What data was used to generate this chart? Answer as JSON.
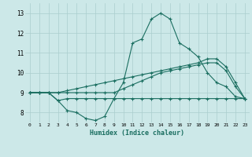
{
  "title": "",
  "xlabel": "Humidex (Indice chaleur)",
  "background_color": "#cce8e8",
  "grid_color": "#aacece",
  "line_color": "#1a6e60",
  "xlim": [
    -0.5,
    23.5
  ],
  "ylim": [
    7.5,
    13.5
  ],
  "xticks": [
    0,
    1,
    2,
    3,
    4,
    5,
    6,
    7,
    8,
    9,
    10,
    11,
    12,
    13,
    14,
    15,
    16,
    17,
    18,
    19,
    20,
    21,
    22,
    23
  ],
  "yticks": [
    8,
    9,
    10,
    11,
    12,
    13
  ],
  "series": [
    {
      "x": [
        0,
        1,
        2,
        3,
        4,
        5,
        6,
        7,
        8,
        9,
        10,
        11,
        12,
        13,
        14,
        15,
        16,
        17,
        18,
        19,
        20,
        21,
        22,
        23
      ],
      "y": [
        9.0,
        9.0,
        9.0,
        8.6,
        8.1,
        8.0,
        7.7,
        7.6,
        7.8,
        8.7,
        9.5,
        11.5,
        11.7,
        12.7,
        13.0,
        12.7,
        11.5,
        11.2,
        10.8,
        10.0,
        9.5,
        9.3,
        8.8,
        8.7
      ]
    },
    {
      "x": [
        0,
        1,
        2,
        3,
        4,
        5,
        6,
        7,
        8,
        9,
        10,
        11,
        12,
        13,
        14,
        15,
        16,
        17,
        18,
        19,
        20,
        21,
        22,
        23
      ],
      "y": [
        9.0,
        9.0,
        9.0,
        9.0,
        9.1,
        9.2,
        9.3,
        9.4,
        9.5,
        9.6,
        9.7,
        9.8,
        9.9,
        10.0,
        10.1,
        10.2,
        10.3,
        10.4,
        10.5,
        10.7,
        10.7,
        10.3,
        9.5,
        8.7
      ]
    },
    {
      "x": [
        0,
        1,
        2,
        3,
        4,
        5,
        6,
        7,
        8,
        9,
        10,
        11,
        12,
        13,
        14,
        15,
        16,
        17,
        18,
        19,
        20,
        21,
        22,
        23
      ],
      "y": [
        9.0,
        9.0,
        9.0,
        9.0,
        9.0,
        9.0,
        9.0,
        9.0,
        9.0,
        9.0,
        9.2,
        9.4,
        9.6,
        9.8,
        10.0,
        10.1,
        10.2,
        10.3,
        10.4,
        10.5,
        10.5,
        10.1,
        9.3,
        8.7
      ]
    },
    {
      "x": [
        0,
        1,
        2,
        3,
        4,
        5,
        6,
        7,
        8,
        9,
        10,
        11,
        12,
        13,
        14,
        15,
        16,
        17,
        18,
        19,
        20,
        21,
        22,
        23
      ],
      "y": [
        9.0,
        9.0,
        9.0,
        8.6,
        8.7,
        8.7,
        8.7,
        8.7,
        8.7,
        8.7,
        8.7,
        8.7,
        8.7,
        8.7,
        8.7,
        8.7,
        8.7,
        8.7,
        8.7,
        8.7,
        8.7,
        8.7,
        8.7,
        8.7
      ]
    }
  ]
}
